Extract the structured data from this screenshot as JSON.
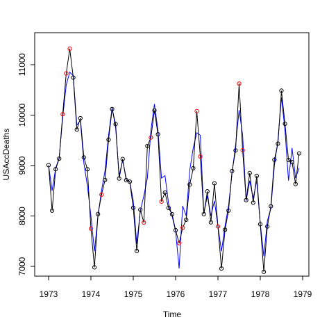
{
  "chart_data": {
    "type": "line",
    "title": "",
    "xlabel": "Time",
    "ylabel": "USAccDeaths",
    "xlim": [
      1973,
      1979
    ],
    "ylim": [
      7000,
      11000
    ],
    "x_ticks": [
      1973,
      1974,
      1975,
      1976,
      1977,
      1978,
      1979
    ],
    "y_ticks": [
      7000,
      8000,
      9000,
      10000,
      11000
    ],
    "x_tick_labels": [
      "1973",
      "1974",
      "1975",
      "1976",
      "1977",
      "1978",
      "1979"
    ],
    "y_tick_labels": [
      "7000",
      "8000",
      "9000",
      "10000",
      "11000"
    ],
    "x_start": 1973,
    "x_step": 0.0833333,
    "grid": false,
    "series": [
      {
        "style": "line+points",
        "color": "#000000",
        "values": [
          9007,
          8106,
          8928,
          9137,
          10017,
          10826,
          11317,
          10744,
          9713,
          9938,
          9161,
          8927,
          7750,
          6981,
          8038,
          8422,
          8714,
          9512,
          10120,
          9823,
          8743,
          9129,
          8710,
          8680,
          8162,
          7306,
          8124,
          7870,
          9387,
          9556,
          10093,
          9620,
          8285,
          8466,
          8160,
          8034,
          7717,
          7461,
          7767,
          7925,
          8623,
          8945,
          10078,
          9179,
          8037,
          8488,
          7874,
          8647,
          7792,
          6957,
          7726,
          8106,
          8890,
          9299,
          10625,
          9302,
          8314,
          8850,
          8265,
          8796,
          7836,
          6892,
          7791,
          8192,
          9115,
          9434,
          10484,
          9827,
          9110,
          9070,
          8633,
          9240
        ]
      },
      {
        "style": "line",
        "color": "#0000ff",
        "values": [
          9007,
          8500,
          8950,
          9150,
          9950,
          10600,
          10850,
          10780,
          9800,
          9900,
          9050,
          8600,
          8000,
          7300,
          8000,
          8500,
          8900,
          9600,
          10150,
          9750,
          8800,
          9100,
          8750,
          8680,
          8300,
          7450,
          8100,
          8400,
          8750,
          9700,
          10220,
          9700,
          8750,
          8800,
          8250,
          8000,
          7700,
          6960,
          8200,
          8000,
          8900,
          9350,
          9650,
          9600,
          8050,
          8400,
          8000,
          8300,
          7800,
          7300,
          7800,
          8200,
          8850,
          9400,
          10100,
          9600,
          8300,
          8700,
          8350,
          8700,
          7850,
          7200,
          7900,
          8150,
          9000,
          9500,
          10350,
          9700,
          8700,
          9350,
          8750,
          8950
        ]
      }
    ],
    "highlighted_points": {
      "color": "#ff0000",
      "indices": [
        4,
        5,
        6,
        12,
        15,
        27,
        29,
        32,
        37,
        38,
        42,
        43,
        48,
        54,
        55
      ]
    }
  }
}
